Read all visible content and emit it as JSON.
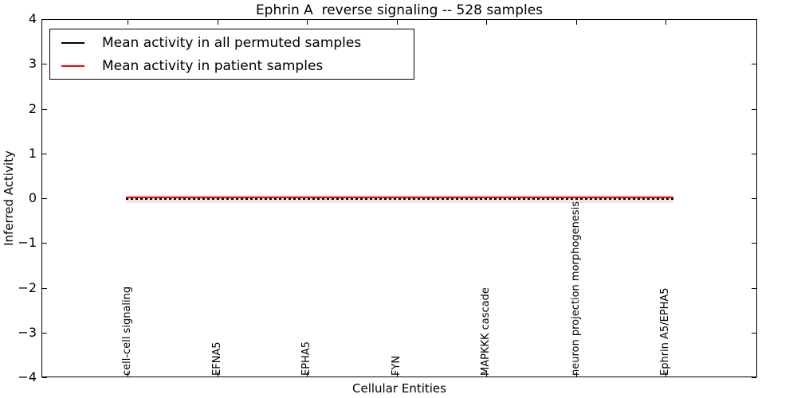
{
  "figure": {
    "title": "Ephrin A  reverse signaling -- 528 samples",
    "xlabel": "Cellular Entities",
    "ylabel": "Inferred Activity"
  },
  "legend": {
    "position": "upper left",
    "entries": [
      {
        "label": "Mean activity in all permuted samples",
        "color": "#000000"
      },
      {
        "label": "Mean activity in patient samples",
        "color": "#ff0000"
      }
    ]
  },
  "colors": {
    "permuted_line": "#000000",
    "patient_line": "#ff0000",
    "spread_band": "#e7e7e7",
    "background": "#ffffff",
    "text": "#000000"
  },
  "chart_data": {
    "type": "line",
    "title": "Ephrin A  reverse signaling -- 528 samples",
    "subtitle": "",
    "xlabel": "Cellular Entities",
    "ylabel": "Inferred Activity",
    "samples_count": 528,
    "ylim": [
      -4,
      4
    ],
    "ytick_values": [
      4,
      3,
      2,
      1,
      0,
      -1,
      -2,
      -3,
      -4
    ],
    "ytick_labels": [
      "4",
      "3",
      "2",
      "1",
      "0",
      "−1",
      "−2",
      "−3",
      "−4"
    ],
    "categories": [
      "cell-cell signaling",
      "EFNA5",
      "EPHA5",
      "FYN",
      "MAPKKK cascade",
      "neuron projection morphogenesis",
      "Ephrin A5/EPHA5"
    ],
    "series": [
      {
        "name": "Mean activity in all permuted samples",
        "color": "#000000",
        "line_style": "dashed",
        "values": [
          0.0,
          0.0,
          0.0,
          0.0,
          0.0,
          0.0,
          0.0
        ]
      },
      {
        "name": "Mean activity in patient samples",
        "color": "#ff0000",
        "line_style": "solid",
        "values": [
          0.03,
          0.03,
          0.03,
          0.03,
          0.03,
          0.03,
          0.03
        ]
      }
    ],
    "band": {
      "series": "Mean activity in all permuted samples",
      "lower": -0.08,
      "upper": 0.08,
      "color": "#e7e7e7"
    },
    "legend_position": "upper left",
    "grid": false,
    "tick_direction": "in"
  }
}
